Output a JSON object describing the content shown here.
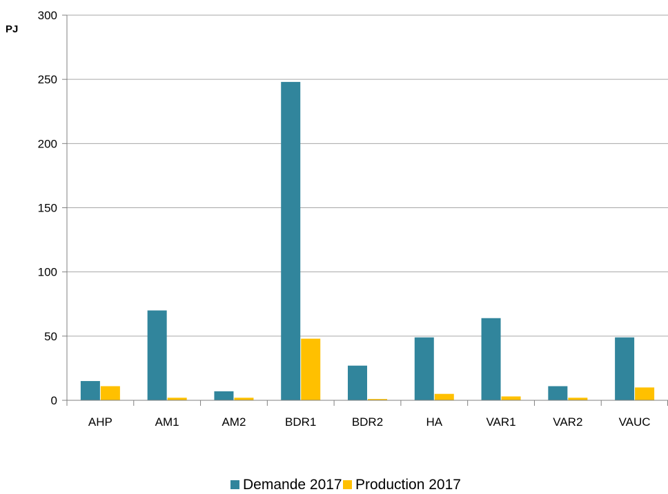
{
  "chart_data": {
    "type": "bar",
    "title": "",
    "xlabel": "",
    "ylabel": "PJ",
    "ylim": [
      0,
      300
    ],
    "yticks": [
      0,
      50,
      100,
      150,
      200,
      250,
      300
    ],
    "grid": true,
    "legend_position": "bottom",
    "categories": [
      "AHP",
      "AM1",
      "AM2",
      "BDR1",
      "BDR2",
      "HA",
      "VAR1",
      "VAR2",
      "VAUC"
    ],
    "series": [
      {
        "name": "Demande 2017",
        "color": "#31859c",
        "values": [
          15,
          70,
          7,
          248,
          27,
          49,
          64,
          11,
          49
        ]
      },
      {
        "name": "Production 2017",
        "color": "#ffc000",
        "values": [
          11,
          2,
          2,
          48,
          1,
          5,
          3,
          2,
          10
        ]
      }
    ]
  }
}
